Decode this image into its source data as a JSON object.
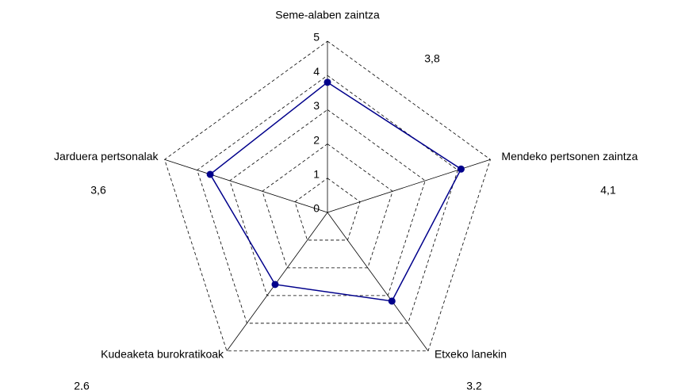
{
  "chart_data": {
    "type": "radar",
    "categories": [
      "Seme-alaben zaintza",
      "Mendeko pertsonen zaintza",
      "Etxeko lanekin",
      "Kudeaketa burokratikoak",
      "Jarduera pertsonalak"
    ],
    "series": [
      {
        "color": "#00008b",
        "values": [
          3.8,
          4.1,
          3.2,
          2.6,
          3.6
        ],
        "value_labels": [
          "3,8",
          "4,1",
          "3,2",
          "2,6",
          "3,6"
        ]
      }
    ],
    "rlim": [
      0,
      5
    ],
    "rticks": [
      0,
      1,
      2,
      3,
      4,
      5
    ],
    "grid": true
  }
}
